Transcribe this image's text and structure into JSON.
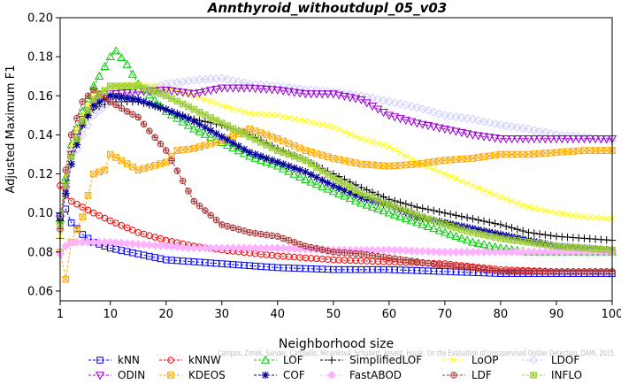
{
  "chart_data": {
    "type": "line",
    "title": "Annthyroid_withoutdupl_05_v03",
    "xlabel": "Neighborhood size",
    "ylabel": "Adjusted Maximum F1",
    "xlim": [
      1,
      100
    ],
    "ylim": [
      0.055,
      0.2
    ],
    "xticks": [
      1,
      10,
      20,
      30,
      40,
      50,
      60,
      70,
      80,
      90,
      100
    ],
    "yticks": [
      0.06,
      0.08,
      0.1,
      0.12,
      0.14,
      0.16,
      0.18,
      0.2
    ],
    "ytick_labels": [
      "0.06",
      "0.08",
      "0.10",
      "0.12",
      "0.14",
      "0.16",
      "0.18",
      "0.20"
    ],
    "grid": false,
    "legend_position": "bottom",
    "watermark": "Campos, Zimek, Sander, Campello, Micenková, Schubert, Assent, Houle: On the Evaluation of Unsupervised Outlier Detection. DAMI, 2015.",
    "series": [
      {
        "name": "kNN",
        "color": "#0000ff",
        "marker": "square",
        "x": [
          1,
          2,
          3,
          5,
          7,
          10,
          15,
          20,
          25,
          30,
          40,
          50,
          60,
          70,
          80,
          90,
          100
        ],
        "y": [
          0.098,
          0.102,
          0.095,
          0.089,
          0.085,
          0.082,
          0.079,
          0.076,
          0.075,
          0.074,
          0.072,
          0.071,
          0.071,
          0.07,
          0.069,
          0.069,
          0.069
        ]
      },
      {
        "name": "kNNW",
        "color": "#ff0000",
        "marker": "circle",
        "x": [
          1,
          2,
          3,
          5,
          7,
          10,
          15,
          20,
          25,
          30,
          40,
          50,
          60,
          70,
          80,
          90,
          100
        ],
        "y": [
          0.114,
          0.109,
          0.106,
          0.103,
          0.1,
          0.096,
          0.09,
          0.086,
          0.083,
          0.081,
          0.078,
          0.076,
          0.075,
          0.074,
          0.071,
          0.07,
          0.07
        ]
      },
      {
        "name": "LOF",
        "color": "#00cc00",
        "marker": "triangle",
        "x": [
          1,
          2,
          3,
          5,
          7,
          10,
          11,
          13,
          15,
          20,
          25,
          30,
          35,
          40,
          45,
          50,
          55,
          60,
          65,
          70,
          75,
          80,
          85,
          90,
          95,
          100
        ],
        "y": [
          0.097,
          0.118,
          0.135,
          0.152,
          0.165,
          0.18,
          0.183,
          0.176,
          0.166,
          0.152,
          0.143,
          0.136,
          0.129,
          0.124,
          0.117,
          0.111,
          0.105,
          0.1,
          0.095,
          0.09,
          0.085,
          0.082,
          0.08,
          0.08,
          0.08,
          0.08
        ]
      },
      {
        "name": "SimplifiedLOF",
        "color": "#000000",
        "marker": "plus",
        "x": [
          1,
          2,
          3,
          5,
          7,
          10,
          15,
          20,
          25,
          30,
          35,
          40,
          45,
          50,
          55,
          60,
          65,
          70,
          75,
          80,
          85,
          90,
          95,
          100
        ],
        "y": [
          0.087,
          0.115,
          0.13,
          0.145,
          0.153,
          0.157,
          0.157,
          0.153,
          0.148,
          0.145,
          0.14,
          0.133,
          0.127,
          0.12,
          0.113,
          0.107,
          0.103,
          0.1,
          0.097,
          0.094,
          0.09,
          0.088,
          0.087,
          0.086
        ]
      },
      {
        "name": "LoOP",
        "color": "#ffff00",
        "marker": "x",
        "x": [
          1,
          2,
          3,
          5,
          7,
          10,
          15,
          20,
          25,
          30,
          35,
          40,
          45,
          50,
          55,
          60,
          65,
          70,
          75,
          80,
          85,
          90,
          95,
          100
        ],
        "y": [
          0.088,
          0.12,
          0.135,
          0.15,
          0.16,
          0.165,
          0.166,
          0.164,
          0.16,
          0.155,
          0.151,
          0.15,
          0.147,
          0.144,
          0.138,
          0.134,
          0.126,
          0.12,
          0.114,
          0.108,
          0.103,
          0.1,
          0.098,
          0.097
        ]
      },
      {
        "name": "LDOF",
        "color": "#ccccff",
        "marker": "diamond",
        "x": [
          1,
          2,
          3,
          5,
          7,
          10,
          15,
          20,
          25,
          30,
          35,
          40,
          45,
          50,
          55,
          60,
          65,
          70,
          75,
          80,
          85,
          90,
          95,
          100
        ],
        "y": [
          0.091,
          0.11,
          0.125,
          0.14,
          0.15,
          0.157,
          0.162,
          0.166,
          0.168,
          0.169,
          0.166,
          0.165,
          0.163,
          0.162,
          0.16,
          0.157,
          0.154,
          0.15,
          0.148,
          0.145,
          0.143,
          0.14,
          0.139,
          0.137
        ]
      },
      {
        "name": "ODIN",
        "color": "#9900cc",
        "marker": "triangle-down",
        "x": [
          1,
          2,
          3,
          5,
          7,
          10,
          15,
          20,
          25,
          30,
          35,
          40,
          45,
          50,
          55,
          60,
          65,
          70,
          75,
          80,
          85,
          90,
          95,
          100
        ],
        "y": [
          0.097,
          0.112,
          0.13,
          0.148,
          0.157,
          0.161,
          0.162,
          0.163,
          0.161,
          0.164,
          0.164,
          0.163,
          0.161,
          0.161,
          0.158,
          0.15,
          0.146,
          0.143,
          0.14,
          0.138,
          0.138,
          0.138,
          0.138,
          0.138
        ]
      },
      {
        "name": "KDEOS",
        "color": "#ffaa00",
        "marker": "square-x",
        "x": [
          1,
          2,
          3,
          5,
          7,
          9,
          10,
          15,
          20,
          22,
          25,
          30,
          35,
          40,
          45,
          50,
          55,
          60,
          65,
          70,
          75,
          80,
          85,
          90,
          95,
          100
        ],
        "y": [
          0.08,
          0.066,
          0.085,
          0.098,
          0.12,
          0.122,
          0.13,
          0.122,
          0.126,
          0.132,
          0.133,
          0.137,
          0.143,
          0.138,
          0.132,
          0.128,
          0.125,
          0.124,
          0.125,
          0.127,
          0.128,
          0.13,
          0.13,
          0.131,
          0.132,
          0.132
        ]
      },
      {
        "name": "COF",
        "color": "#000099",
        "marker": "asterisk",
        "x": [
          1,
          2,
          3,
          5,
          7,
          10,
          15,
          20,
          25,
          30,
          35,
          40,
          45,
          50,
          55,
          60,
          65,
          70,
          75,
          80,
          85,
          90,
          95,
          100
        ],
        "y": [
          0.096,
          0.11,
          0.125,
          0.145,
          0.155,
          0.16,
          0.158,
          0.153,
          0.147,
          0.139,
          0.131,
          0.126,
          0.121,
          0.114,
          0.108,
          0.104,
          0.098,
          0.095,
          0.092,
          0.089,
          0.086,
          0.083,
          0.082,
          0.081
        ]
      },
      {
        "name": "FastABOD",
        "color": "#ffb3ff",
        "marker": "diamond-filled",
        "x": [
          1,
          2,
          3,
          5,
          7,
          10,
          15,
          20,
          25,
          30,
          40,
          50,
          60,
          70,
          80,
          90,
          100
        ],
        "y": [
          0.079,
          0.083,
          0.085,
          0.085,
          0.085,
          0.085,
          0.084,
          0.083,
          0.082,
          0.082,
          0.082,
          0.081,
          0.081,
          0.08,
          0.08,
          0.08,
          0.08
        ]
      },
      {
        "name": "LDF",
        "color": "#aa3333",
        "marker": "circle-plus",
        "x": [
          1,
          2,
          3,
          5,
          7,
          10,
          13,
          15,
          17,
          20,
          25,
          30,
          35,
          40,
          45,
          50,
          55,
          60,
          65,
          70,
          75,
          80,
          85,
          90,
          95,
          100
        ],
        "y": [
          0.092,
          0.122,
          0.14,
          0.157,
          0.163,
          0.157,
          0.152,
          0.149,
          0.142,
          0.132,
          0.106,
          0.094,
          0.09,
          0.088,
          0.083,
          0.08,
          0.079,
          0.077,
          0.075,
          0.073,
          0.072,
          0.07,
          0.07,
          0.07,
          0.07,
          0.07
        ]
      },
      {
        "name": "INFLO",
        "color": "#99cc33",
        "marker": "square-star",
        "x": [
          1,
          2,
          3,
          5,
          7,
          10,
          15,
          20,
          25,
          30,
          35,
          40,
          45,
          50,
          55,
          60,
          65,
          70,
          75,
          80,
          85,
          90,
          95,
          100
        ],
        "y": [
          0.094,
          0.114,
          0.129,
          0.147,
          0.158,
          0.165,
          0.165,
          0.16,
          0.153,
          0.146,
          0.139,
          0.132,
          0.127,
          0.118,
          0.11,
          0.104,
          0.099,
          0.094,
          0.09,
          0.087,
          0.085,
          0.083,
          0.082,
          0.081
        ]
      }
    ],
    "legend_rows": [
      [
        "kNN",
        "kNNW",
        "LOF",
        "SimplifiedLOF",
        "LoOP",
        "LDOF"
      ],
      [
        "ODIN",
        "KDEOS",
        "COF",
        "FastABOD",
        "LDF",
        "INFLO"
      ]
    ]
  }
}
